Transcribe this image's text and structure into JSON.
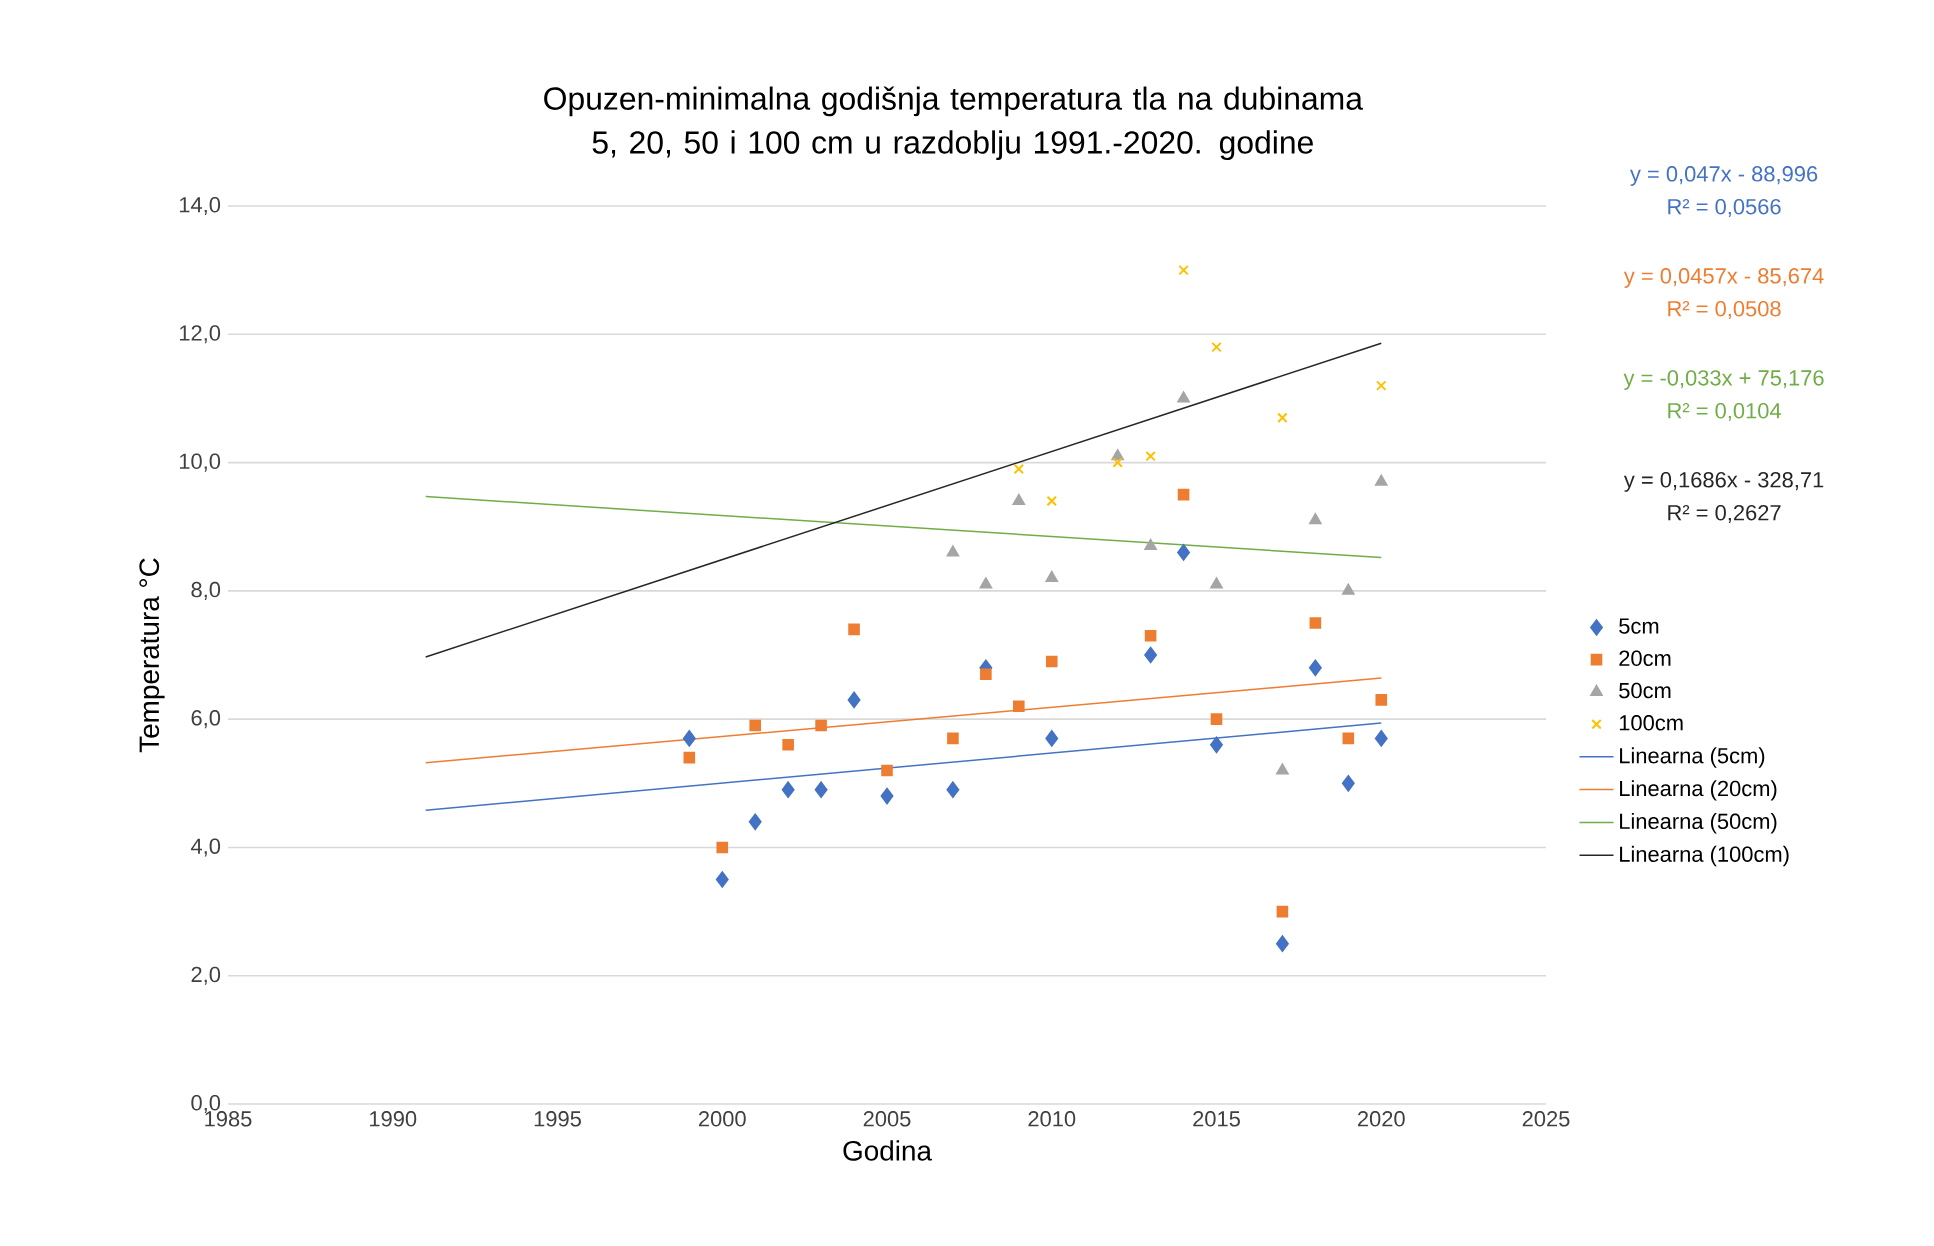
{
  "chart_data": {
    "type": "scatter",
    "title": "Opuzen-minimalna godišnja temperatura tla na dubinama 5, 20, 50 i 100 cm u razdoblju 1991.-2020. godine",
    "xlabel": "Godina",
    "ylabel": "Temperatura °C",
    "xlim": [
      1985,
      2025
    ],
    "xticks": [
      1985,
      1990,
      1995,
      2000,
      2005,
      2010,
      2015,
      2020,
      2025
    ],
    "ylim": [
      0,
      14
    ],
    "yticks": [
      {
        "value": 0,
        "label": "0,0"
      },
      {
        "value": 2,
        "label": "2,0"
      },
      {
        "value": 4,
        "label": "4,0"
      },
      {
        "value": 6,
        "label": "6,0"
      },
      {
        "value": 8,
        "label": "8,0"
      },
      {
        "value": 10,
        "label": "10,0"
      },
      {
        "value": 12,
        "label": "12,0"
      },
      {
        "value": 14,
        "label": "14,0"
      }
    ],
    "grid": "y",
    "legend": "right",
    "series": [
      {
        "name": "5cm",
        "type": "scatter",
        "marker": "diamond",
        "color": "#4472c4",
        "x": [
          1999,
          2000,
          2001,
          2002,
          2003,
          2004,
          2005,
          2007,
          2008,
          2010,
          2013,
          2014,
          2015,
          2017,
          2018,
          2019,
          2020
        ],
        "values": [
          5.7,
          3.5,
          4.4,
          4.9,
          4.9,
          6.3,
          4.8,
          4.9,
          6.8,
          5.7,
          7.0,
          8.6,
          5.6,
          2.5,
          6.8,
          5.0,
          5.7
        ]
      },
      {
        "name": "20cm",
        "type": "scatter",
        "marker": "square",
        "color": "#ed7d31",
        "x": [
          1999,
          2000,
          2001,
          2002,
          2003,
          2004,
          2005,
          2007,
          2008,
          2009,
          2010,
          2013,
          2014,
          2015,
          2017,
          2018,
          2019,
          2020
        ],
        "values": [
          5.4,
          4.0,
          5.9,
          5.6,
          5.9,
          7.4,
          5.2,
          5.7,
          6.7,
          6.2,
          6.9,
          7.3,
          9.5,
          6.0,
          3.0,
          7.5,
          5.7,
          6.3
        ]
      },
      {
        "name": "50cm",
        "type": "scatter",
        "marker": "triangle",
        "color": "#a5a5a5",
        "x": [
          2007,
          2008,
          2009,
          2010,
          2012,
          2013,
          2014,
          2015,
          2017,
          2018,
          2019,
          2020
        ],
        "values": [
          8.6,
          8.1,
          9.4,
          8.2,
          10.1,
          8.7,
          11.0,
          8.1,
          5.2,
          9.1,
          8.0,
          9.7
        ]
      },
      {
        "name": "100cm",
        "type": "scatter",
        "marker": "cross",
        "color": "#ffc000",
        "x": [
          2009,
          2010,
          2012,
          2013,
          2014,
          2015,
          2017,
          2020
        ],
        "values": [
          9.9,
          9.4,
          10.0,
          10.1,
          13.0,
          11.8,
          10.7,
          11.2
        ]
      },
      {
        "name": "Linearna (5cm)",
        "type": "line",
        "color": "#4472c4",
        "x": [
          1991,
          2020
        ],
        "values": [
          4.58,
          5.94
        ]
      },
      {
        "name": "Linearna (20cm)",
        "type": "line",
        "color": "#ed7d31",
        "x": [
          1991,
          2020
        ],
        "values": [
          5.32,
          6.64
        ]
      },
      {
        "name": "Linearna (50cm)",
        "type": "line",
        "color": "#70ad47",
        "x": [
          1991,
          2020
        ],
        "values": [
          9.47,
          8.52
        ]
      },
      {
        "name": "Linearna (100cm)",
        "type": "line",
        "color": "#262626",
        "x": [
          1991,
          2020
        ],
        "values": [
          6.97,
          11.86
        ]
      }
    ],
    "annotations": [
      "y = 0,047x - 88,996",
      "R² = 0,0566",
      "y = 0,0457x - 85,674",
      "R² = 0,0508",
      "y = -0,033x + 75,176",
      "R² = 0,0104",
      "y = 0,1686x - 328,71",
      "R² = 0,2627"
    ]
  }
}
